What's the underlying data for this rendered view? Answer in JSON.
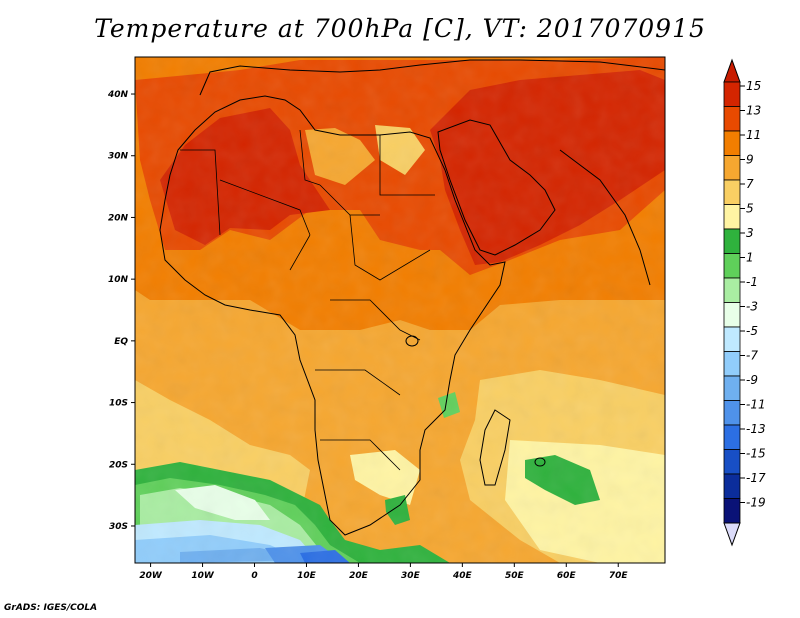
{
  "title": "Temperature at 700hPa [C], VT: 2017070915",
  "credit": "GrADS: IGES/COLA",
  "map": {
    "region": "Africa and Arabian Peninsula",
    "lon_range": [
      -23,
      79
    ],
    "lat_range": [
      -36,
      46
    ],
    "xticks": [
      "20W",
      "10W",
      "0",
      "10E",
      "20E",
      "30E",
      "40E",
      "50E",
      "60E",
      "70E"
    ],
    "yticks": [
      "40N",
      "30N",
      "20N",
      "10N",
      "EQ",
      "10S",
      "20S",
      "30S"
    ],
    "frame": "map-frame"
  },
  "colorbar": {
    "levels": [
      "15",
      "13",
      "11",
      "9",
      "7",
      "5",
      "3",
      "1",
      "-1",
      "-3",
      "-5",
      "-7",
      "-9",
      "-11",
      "-13",
      "-15",
      "-17",
      "-19"
    ],
    "colors": [
      "#d42500",
      "#e84a00",
      "#f27e00",
      "#f6a730",
      "#f9cf63",
      "#fff4a3",
      "#2fb23d",
      "#5fd05a",
      "#a9eda2",
      "#e8ffe8",
      "#bfe9ff",
      "#91cdfb",
      "#6fb0f0",
      "#4f92ea",
      "#2c6fe3",
      "#184fc5",
      "#0b2d9b",
      "#0a1277"
    ],
    "top_arrow_color": "#c81c00",
    "bottom_arrow_color": "#dcdcfa"
  }
}
